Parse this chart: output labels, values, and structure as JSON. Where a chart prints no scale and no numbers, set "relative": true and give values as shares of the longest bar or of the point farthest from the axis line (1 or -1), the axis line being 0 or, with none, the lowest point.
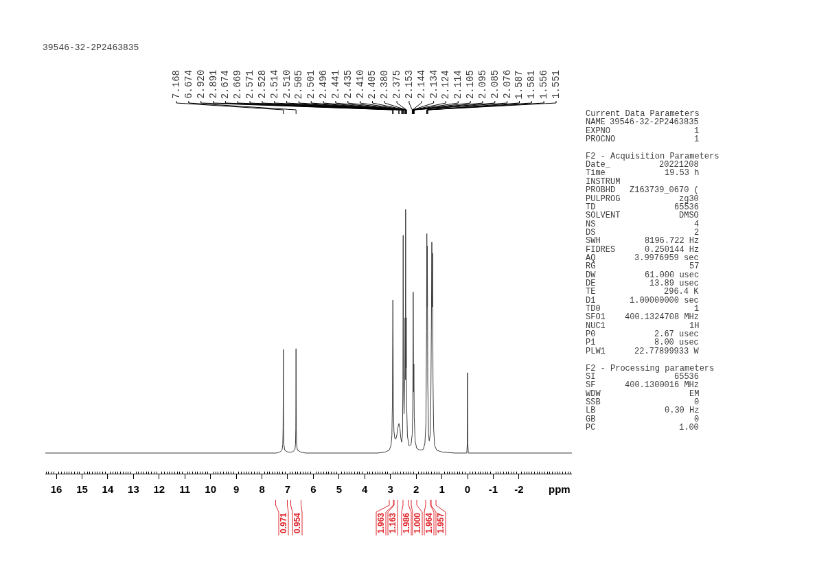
{
  "chart_data": [
    {
      "type": "line",
      "title": "39546-32-2P2463835",
      "xlabel": "ppm",
      "relative": true,
      "xlim": [
        16.43,
        -4.06
      ],
      "xticks": [
        16,
        15,
        14,
        13,
        12,
        11,
        10,
        9,
        8,
        7,
        6,
        5,
        4,
        3,
        2,
        1,
        0,
        -1,
        -2,
        {
          "value": 16.4,
          "label": null
        },
        {
          "value": 16.3,
          "label": null
        },
        {
          "value": 16.2,
          "label": null
        },
        {
          "value": 16.1,
          "label": null
        },
        {
          "value": 15.9,
          "label": null
        },
        {
          "value": 15.8,
          "label": null
        },
        {
          "value": 15.7,
          "label": null
        },
        {
          "value": 15.6,
          "label": null
        },
        {
          "value": 15.5,
          "label": null
        },
        {
          "value": 15.4,
          "label": null
        },
        {
          "value": 15.3,
          "label": null
        },
        {
          "value": 15.2,
          "label": null
        },
        {
          "value": 15.1,
          "label": null
        },
        {
          "value": 14.9,
          "label": null
        },
        {
          "value": 14.8,
          "label": null
        },
        {
          "value": 14.7,
          "label": null
        },
        {
          "value": 14.6,
          "label": null
        },
        {
          "value": 14.5,
          "label": null
        },
        {
          "value": 14.4,
          "label": null
        },
        {
          "value": 14.3,
          "label": null
        },
        {
          "value": 14.2,
          "label": null
        },
        {
          "value": 14.1,
          "label": null
        },
        {
          "value": 13.9,
          "label": null
        },
        {
          "value": 13.8,
          "label": null
        },
        {
          "value": 13.7,
          "label": null
        },
        {
          "value": 13.6,
          "label": null
        },
        {
          "value": 13.5,
          "label": null
        },
        {
          "value": 13.4,
          "label": null
        },
        {
          "value": 13.3,
          "label": null
        },
        {
          "value": 13.2,
          "label": null
        },
        {
          "value": 13.1,
          "label": null
        },
        {
          "value": 12.9,
          "label": null
        },
        {
          "value": 12.8,
          "label": null
        },
        {
          "value": 12.7,
          "label": null
        },
        {
          "value": 12.6,
          "label": null
        },
        {
          "value": 12.5,
          "label": null
        },
        {
          "value": 12.4,
          "label": null
        },
        {
          "value": 12.3,
          "label": null
        },
        {
          "value": 12.2,
          "label": null
        },
        {
          "value": 12.1,
          "label": null
        },
        {
          "value": 11.9,
          "label": null
        },
        {
          "value": 11.8,
          "label": null
        },
        {
          "value": 11.7,
          "label": null
        },
        {
          "value": 11.6,
          "label": null
        },
        {
          "value": 11.5,
          "label": null
        },
        {
          "value": 11.4,
          "label": null
        },
        {
          "value": 11.3,
          "label": null
        },
        {
          "value": 11.2,
          "label": null
        },
        {
          "value": 11.1,
          "label": null
        },
        {
          "value": 10.9,
          "label": null
        },
        {
          "value": 10.8,
          "label": null
        },
        {
          "value": 10.7,
          "label": null
        },
        {
          "value": 10.6,
          "label": null
        },
        {
          "value": 10.5,
          "label": null
        },
        {
          "value": 10.4,
          "label": null
        },
        {
          "value": 10.3,
          "label": null
        },
        {
          "value": 10.2,
          "label": null
        },
        {
          "value": 10.1,
          "label": null
        },
        {
          "value": 9.9,
          "label": null
        },
        {
          "value": 9.8,
          "label": null
        },
        {
          "value": 9.7,
          "label": null
        },
        {
          "value": 9.6,
          "label": null
        },
        {
          "value": 9.5,
          "label": null
        },
        {
          "value": 9.4,
          "label": null
        },
        {
          "value": 9.3,
          "label": null
        },
        {
          "value": 9.2,
          "label": null
        },
        {
          "value": 9.1,
          "label": null
        },
        {
          "value": 8.9,
          "label": null
        },
        {
          "value": 8.8,
          "label": null
        },
        {
          "value": 8.7,
          "label": null
        },
        {
          "value": 8.6,
          "label": null
        },
        {
          "value": 8.5,
          "label": null
        },
        {
          "value": 8.4,
          "label": null
        },
        {
          "value": 8.3,
          "label": null
        },
        {
          "value": 8.2,
          "label": null
        },
        {
          "value": 8.1,
          "label": null
        },
        {
          "value": 7.9,
          "label": null
        },
        {
          "value": 7.8,
          "label": null
        },
        {
          "value": 7.7,
          "label": null
        },
        {
          "value": 7.6,
          "label": null
        },
        {
          "value": 7.5,
          "label": null
        },
        {
          "value": 7.4,
          "label": null
        },
        {
          "value": 7.3,
          "label": null
        },
        {
          "value": 7.2,
          "label": null
        },
        {
          "value": 7.1,
          "label": null
        },
        {
          "value": 6.9,
          "label": null
        },
        {
          "value": 6.8,
          "label": null
        },
        {
          "value": 6.7,
          "label": null
        },
        {
          "value": 6.6,
          "label": null
        },
        {
          "value": 6.5,
          "label": null
        },
        {
          "value": 6.4,
          "label": null
        },
        {
          "value": 6.3,
          "label": null
        },
        {
          "value": 6.2,
          "label": null
        },
        {
          "value": 6.1,
          "label": null
        },
        {
          "value": 5.9,
          "label": null
        },
        {
          "value": 5.8,
          "label": null
        },
        {
          "value": 5.7,
          "label": null
        },
        {
          "value": 5.6,
          "label": null
        },
        {
          "value": 5.5,
          "label": null
        },
        {
          "value": 5.4,
          "label": null
        },
        {
          "value": 5.3,
          "label": null
        },
        {
          "value": 5.2,
          "label": null
        },
        {
          "value": 5.1,
          "label": null
        },
        {
          "value": 4.9,
          "label": null
        },
        {
          "value": 4.8,
          "label": null
        },
        {
          "value": 4.7,
          "label": null
        },
        {
          "value": 4.6,
          "label": null
        },
        {
          "value": 4.5,
          "label": null
        },
        {
          "value": 4.4,
          "label": null
        },
        {
          "value": 4.3,
          "label": null
        },
        {
          "value": 4.2,
          "label": null
        },
        {
          "value": 4.1,
          "label": null
        },
        {
          "value": 3.9,
          "label": null
        },
        {
          "value": 3.8,
          "label": null
        },
        {
          "value": 3.7,
          "label": null
        },
        {
          "value": 3.6,
          "label": null
        },
        {
          "value": 3.5,
          "label": null
        },
        {
          "value": 3.4,
          "label": null
        },
        {
          "value": 3.3,
          "label": null
        },
        {
          "value": 3.2,
          "label": null
        },
        {
          "value": 3.1,
          "label": null
        },
        {
          "value": 2.9,
          "label": null
        },
        {
          "value": 2.8,
          "label": null
        },
        {
          "value": 2.7,
          "label": null
        },
        {
          "value": 2.6,
          "label": null
        },
        {
          "value": 2.5,
          "label": null
        },
        {
          "value": 2.4,
          "label": null
        },
        {
          "value": 2.3,
          "label": null
        },
        {
          "value": 2.2,
          "label": null
        },
        {
          "value": 2.1,
          "label": null
        },
        {
          "value": 1.9,
          "label": null
        },
        {
          "value": 1.8,
          "label": null
        },
        {
          "value": 1.7,
          "label": null
        },
        {
          "value": 1.6,
          "label": null
        },
        {
          "value": 1.5,
          "label": null
        },
        {
          "value": 1.4,
          "label": null
        },
        {
          "value": 1.3,
          "label": null
        },
        {
          "value": 1.2,
          "label": null
        },
        {
          "value": 1.1,
          "label": null
        },
        {
          "value": 0.9,
          "label": null
        },
        {
          "value": 0.8,
          "label": null
        },
        {
          "value": 0.7,
          "label": null
        },
        {
          "value": 0.6,
          "label": null
        },
        {
          "value": 0.5,
          "label": null
        },
        {
          "value": 0.4,
          "label": null
        },
        {
          "value": 0.3,
          "label": null
        },
        {
          "value": 0.2,
          "label": null
        },
        {
          "value": 0.1,
          "label": null
        },
        {
          "value": -0.1,
          "label": null
        },
        {
          "value": -0.2,
          "label": null
        },
        {
          "value": -0.3,
          "label": null
        },
        {
          "value": -0.4,
          "label": null
        },
        {
          "value": -0.5,
          "label": null
        },
        {
          "value": -0.6,
          "label": null
        },
        {
          "value": -0.7,
          "label": null
        },
        {
          "value": -0.8,
          "label": null
        },
        {
          "value": -0.9,
          "label": null
        },
        {
          "value": -1.1,
          "label": null
        },
        {
          "value": -1.2,
          "label": null
        },
        {
          "value": -1.3,
          "label": null
        },
        {
          "value": -1.4,
          "label": null
        },
        {
          "value": -1.5,
          "label": null
        },
        {
          "value": -1.6,
          "label": null
        },
        {
          "value": -1.7,
          "label": null
        },
        {
          "value": -1.8,
          "label": null
        },
        {
          "value": -1.9,
          "label": null
        },
        {
          "value": -2.1,
          "label": null
        },
        {
          "value": -2.2,
          "label": null
        },
        {
          "value": -2.3,
          "label": null
        },
        {
          "value": -2.4,
          "label": null
        },
        {
          "value": -2.5,
          "label": null
        },
        {
          "value": -2.6,
          "label": null
        },
        {
          "value": -2.7,
          "label": null
        },
        {
          "value": -2.8,
          "label": null
        },
        {
          "value": -2.9,
          "label": null
        },
        {
          "value": -3.0,
          "label": null
        },
        {
          "value": -3.1,
          "label": null
        },
        {
          "value": -3.2,
          "label": null
        },
        {
          "value": -3.3,
          "label": null
        },
        {
          "value": -3.4,
          "label": null
        },
        {
          "value": -3.5,
          "label": null
        },
        {
          "value": -3.6,
          "label": null
        },
        {
          "value": -3.7,
          "label": null
        },
        {
          "value": -3.8,
          "label": null
        },
        {
          "value": -3.9,
          "label": null
        },
        {
          "value": -4.0,
          "label": null
        }
      ],
      "x": [
        16.43,
        7.45,
        7.3,
        7.22,
        7.19,
        7.178,
        7.172,
        7.168,
        7.164,
        7.158,
        7.146,
        7.115,
        7.0,
        6.9,
        6.8,
        6.72,
        6.695,
        6.684,
        6.678,
        6.674,
        6.67,
        6.664,
        6.652,
        6.62,
        6.5,
        6.3,
        3.5,
        3.2,
        3.05,
        2.98,
        2.945,
        2.925,
        2.915,
        2.906,
        2.897,
        2.885,
        2.865,
        2.83,
        2.79,
        2.75,
        2.71,
        2.67,
        2.63,
        2.595,
        2.56,
        2.53,
        2.515,
        2.505,
        2.495,
        2.47,
        2.445,
        2.43,
        2.42,
        2.41,
        2.4,
        2.385,
        2.37,
        2.34,
        2.28,
        2.2,
        2.15,
        2.13,
        2.115,
        2.1,
        2.09,
        2.075,
        2.04,
        1.98,
        1.85,
        1.72,
        1.66,
        1.62,
        1.595,
        1.585,
        1.575,
        1.565,
        1.55,
        1.52,
        1.49,
        1.46,
        1.43,
        1.41,
        1.39,
        1.375,
        1.36,
        1.345,
        1.32,
        1.28,
        1.2,
        1.0,
        0.5,
        0.03,
        0.01,
        0.0,
        -0.01,
        -0.03,
        -4.06
      ],
      "series": [
        {
          "color": "#3c3c3c",
          "values": [
            0.078,
            0.078,
            0.082,
            0.089,
            0.11,
            0.17,
            0.299,
            0.47,
            0.299,
            0.17,
            0.11,
            0.089,
            0.082,
            0.081,
            0.083,
            0.091,
            0.11,
            0.17,
            0.299,
            0.473,
            0.299,
            0.17,
            0.11,
            0.089,
            0.082,
            0.078,
            0.078,
            0.082,
            0.089,
            0.106,
            0.143,
            0.262,
            0.493,
            0.657,
            0.493,
            0.262,
            0.161,
            0.133,
            0.131,
            0.147,
            0.175,
            0.19,
            0.17,
            0.133,
            0.119,
            0.152,
            0.355,
            0.902,
            0.355,
            0.226,
            0.355,
            0.59,
            0.355,
            1.0,
            0.401,
            0.59,
            0.262,
            0.143,
            0.106,
            0.11,
            0.152,
            0.262,
            0.687,
            0.309,
            0.415,
            0.216,
            0.124,
            0.096,
            0.089,
            0.092,
            0.115,
            0.189,
            0.539,
            0.908,
            0.631,
            0.862,
            0.355,
            0.152,
            0.124,
            0.143,
            0.262,
            0.539,
            0.876,
            0.631,
            0.834,
            0.355,
            0.17,
            0.106,
            0.089,
            0.082,
            0.078,
            0.078,
            0.115,
            0.382,
            0.115,
            0.078,
            0.078
          ]
        }
      ],
      "annotations": [
        {
          "text": "7.168",
          "x": 7.168
        },
        {
          "text": "6.674",
          "x": 6.674
        },
        {
          "text": "2.920",
          "x": 2.92
        },
        {
          "text": "2.891",
          "x": 2.891
        },
        {
          "text": "2.674",
          "x": 2.674
        },
        {
          "text": "2.669",
          "x": 2.669
        },
        {
          "text": "2.571",
          "x": 2.571
        },
        {
          "text": "2.528",
          "x": 2.528
        },
        {
          "text": "2.514",
          "x": 2.514
        },
        {
          "text": "2.510",
          "x": 2.51
        },
        {
          "text": "2.505",
          "x": 2.505
        },
        {
          "text": "2.501",
          "x": 2.501
        },
        {
          "text": "2.496",
          "x": 2.496
        },
        {
          "text": "2.441",
          "x": 2.441
        },
        {
          "text": "2.435",
          "x": 2.435
        },
        {
          "text": "2.410",
          "x": 2.41
        },
        {
          "text": "2.405",
          "x": 2.405
        },
        {
          "text": "2.380",
          "x": 2.38
        },
        {
          "text": "2.375",
          "x": 2.375
        },
        {
          "text": "2.153",
          "x": 2.153
        },
        {
          "text": "2.144",
          "x": 2.144
        },
        {
          "text": "2.134",
          "x": 2.134
        },
        {
          "text": "2.124",
          "x": 2.124
        },
        {
          "text": "2.114",
          "x": 2.114
        },
        {
          "text": "2.105",
          "x": 2.105
        },
        {
          "text": "2.095",
          "x": 2.095
        },
        {
          "text": "2.085",
          "x": 2.085
        },
        {
          "text": "2.076",
          "x": 2.076
        },
        {
          "text": "1.587",
          "x": 1.587
        },
        {
          "text": "1.581",
          "x": 1.581
        },
        {
          "text": "1.556",
          "x": 1.556
        },
        {
          "text": "1.551",
          "x": 1.551
        },
        "0.971",
        "0.954",
        "1.963",
        "1.163",
        "1.986",
        "1.000",
        "1.964",
        "1.957"
      ]
    },
    {
      "type": "other",
      "title": "Current Data Parameters",
      "annotations": [
        "NAME 39546-32-2P2463835",
        "EXPNO 1",
        "PROCNO 1"
      ]
    },
    {
      "type": "other",
      "title": "F2 - Acquisition Parameters",
      "annotations": [
        "Date_ 20221208",
        "Time 19.53 h",
        "INSTRUM",
        "PROBHD Z163739_0670 (",
        "PULPROG zg30",
        "TD 65536",
        "SOLVENT DMSO",
        "NS 4",
        "DS 2",
        "SWH 8196.722 Hz",
        "FIDRES 0.250144 Hz",
        "AQ 3.9976959 sec",
        "RG 57",
        "DW 61.000 usec",
        "DE 13.89 usec",
        "TE 296.4 K",
        "D1 1.00000000 sec",
        "TD0 1",
        "SFO1 400.1324708 MHz",
        "NUC1 1H",
        "P0 2.67 usec",
        "P1 8.00 usec",
        "PLW1 22.77899933 W"
      ]
    },
    {
      "type": "other",
      "title": "F2 - Processing parameters",
      "annotations": [
        "SI 65536",
        "SF 400.1300016 MHz",
        "WDW EM",
        "SSB 0",
        "LB 0.30 Hz",
        "GB 0",
        "PC 1.00"
      ]
    }
  ]
}
